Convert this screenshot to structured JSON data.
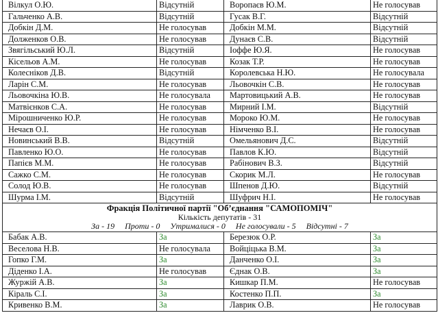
{
  "colors": {
    "za": "#2e8b2e"
  },
  "rows_top": [
    [
      "Вілкул О.Ю.",
      "Відсутній",
      "Воропаєв Ю.М.",
      "Не голосував"
    ],
    [
      "Гальченко А.В.",
      "Відсутній",
      "Гусак В.Г.",
      "Відсутній"
    ],
    [
      "Добкін Д.М.",
      "Не голосував",
      "Добкін М.М.",
      "Відсутній"
    ],
    [
      "Долженков О.В.",
      "Не голосував",
      "Дунаєв С.В.",
      "Відсутній"
    ],
    [
      "Звягільський Ю.Л.",
      "Відсутній",
      "Іоффе Ю.Я.",
      "Не голосував"
    ],
    [
      "Кісельов А.М.",
      "Не голосував",
      "Козак Т.Р.",
      "Не голосував"
    ],
    [
      "Колесніков Д.В.",
      "Відсутній",
      "Королевська Н.Ю.",
      "Не голосувала"
    ],
    [
      "Ларін С.М.",
      "Не голосував",
      "Льовочкін С.В.",
      "Не голосував"
    ],
    [
      "Льовочкіна Ю.В.",
      "Не голосувала",
      "Мартовицький А.В.",
      "Не голосував"
    ],
    [
      "Матвієнков С.А.",
      "Не голосував",
      "Мирний І.М.",
      "Відсутній"
    ],
    [
      "Мірошниченко Ю.Р.",
      "Не голосував",
      "Мороко Ю.М.",
      "Не голосував"
    ],
    [
      "Нечаєв О.І.",
      "Не голосував",
      "Німченко В.І.",
      "Не голосував"
    ],
    [
      "Новинський В.В.",
      "Відсутній",
      "Омельянович Д.С.",
      "Відсутній"
    ],
    [
      "Павленко Ю.О.",
      "Не голосував",
      "Павлов К.Ю.",
      "Відсутній"
    ],
    [
      "Папієв М.М.",
      "Не голосував",
      "Рабінович В.З.",
      "Відсутній"
    ],
    [
      "Сажко С.М.",
      "Не голосував",
      "Скорик М.Л.",
      "Не голосував"
    ],
    [
      "Солод Ю.В.",
      "Не голосував",
      "Шпенов Д.Ю.",
      "Відсутній"
    ],
    [
      "Шурма І.М.",
      "Відсутній",
      "Шуфрич Н.І.",
      "Не голосував"
    ]
  ],
  "faction": {
    "title": "Фракція Політичної партії \"Об’єднання \"САМОПОМІЧ\"",
    "count": "Кількість депутатів  - 31",
    "stats": [
      "За - 19",
      "Проти - 0",
      "Утрималися - 0",
      "Не голосували - 5",
      "Відсутні - 7"
    ]
  },
  "rows_bottom": [
    [
      "Бабак А.В.",
      "За",
      "Березюк О.Р.",
      "За"
    ],
    [
      "Веселова Н.В.",
      "Не голосувала",
      "Войціцька В.М.",
      "За"
    ],
    [
      "Гопко Г.М.",
      "За",
      "Данченко О.І.",
      "За"
    ],
    [
      "Діденко І.А.",
      "Не голосував",
      "Єднак О.В.",
      "За"
    ],
    [
      "Журжій А.В.",
      "За",
      "Кишкар П.М.",
      "Не голосував"
    ],
    [
      "Кіраль С.І.",
      "За",
      "Костенко П.П.",
      "За"
    ],
    [
      "Кривенко В.М.",
      "За",
      "Лаврик О.В.",
      "Не голосував"
    ]
  ]
}
